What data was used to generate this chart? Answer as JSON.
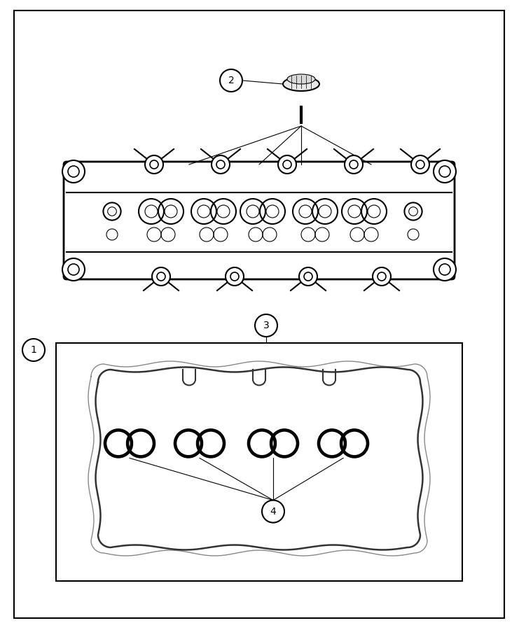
{
  "bg_color": "#ffffff",
  "line_color": "#000000",
  "label1": "1",
  "label2": "2",
  "label3": "3",
  "label4": "4",
  "fig_width": 7.41,
  "fig_height": 9.0,
  "dpi": 100
}
